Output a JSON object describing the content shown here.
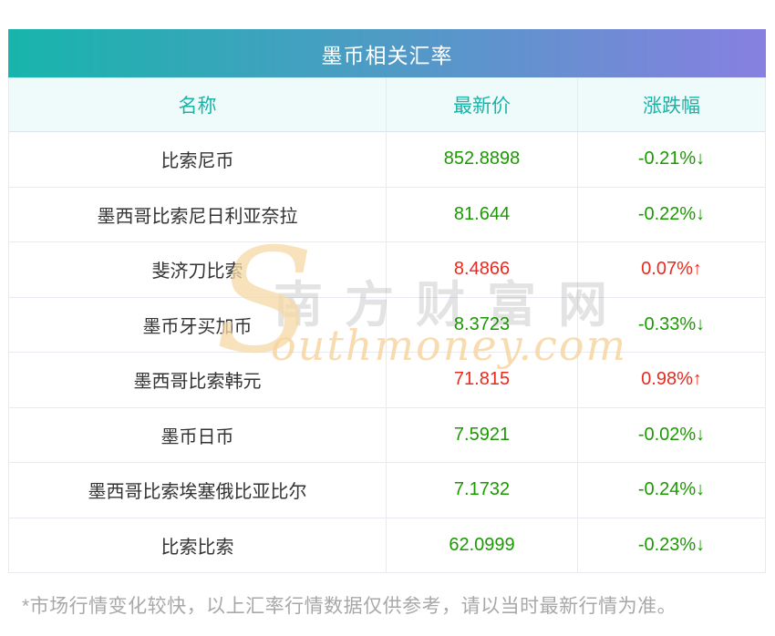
{
  "page": {
    "title": "墨币相关汇率",
    "footnote": "*市场行情变化较快，以上汇率行情数据仅供参考，请以当时最新行情为准。"
  },
  "colors": {
    "header_gradient_start": "#17b5ab",
    "header_gradient_end": "#8780e0",
    "header_text": "#ffffff",
    "column_header_bg": "#eefbfa",
    "column_header_text": "#1bb3a8",
    "up_color": "#ea2a1f",
    "down_color": "#1a9a00",
    "grid_line": "#e7ebf1",
    "footnote_text": "#a8a8a8"
  },
  "table": {
    "columns": [
      "名称",
      "最新价",
      "涨跌幅"
    ],
    "rows": [
      {
        "name": "比索尼币",
        "price": "852.8898",
        "change": "-0.21%↓",
        "trend": "down"
      },
      {
        "name": "墨西哥比索尼日利亚奈拉",
        "price": "81.644",
        "change": "-0.22%↓",
        "trend": "down"
      },
      {
        "name": "斐济刀比索",
        "price": "8.4866",
        "change": "0.07%↑",
        "trend": "up"
      },
      {
        "name": "墨币牙买加币",
        "price": "8.3723",
        "change": "-0.33%↓",
        "trend": "down"
      },
      {
        "name": "墨西哥比索韩元",
        "price": "71.815",
        "change": "0.98%↑",
        "trend": "up"
      },
      {
        "name": "墨币日币",
        "price": "7.5921",
        "change": "-0.02%↓",
        "trend": "down"
      },
      {
        "name": "墨西哥比索埃塞俄比亚比尔",
        "price": "7.1732",
        "change": "-0.24%↓",
        "trend": "down"
      },
      {
        "name": "比索比索",
        "price": "62.0999",
        "change": "-0.23%↓",
        "trend": "down"
      }
    ]
  },
  "watermark": {
    "site_name": "南方财富网",
    "initial": "S",
    "domain_rest": "outhmoney.com"
  },
  "chart_data": {
    "type": "table",
    "title": "墨币相关汇率",
    "columns": [
      "名称",
      "最新价",
      "涨跌幅"
    ],
    "rows": [
      [
        "比索尼币",
        852.8898,
        "-0.21%↓"
      ],
      [
        "墨西哥比索尼日利亚奈拉",
        81.644,
        "-0.22%↓"
      ],
      [
        "斐济刀比索",
        8.4866,
        "0.07%↑"
      ],
      [
        "墨币牙买加币",
        8.3723,
        "-0.33%↓"
      ],
      [
        "墨西哥比索韩元",
        71.815,
        "0.98%↑"
      ],
      [
        "墨币日币",
        7.5921,
        "-0.02%↓"
      ],
      [
        "墨西哥比索埃塞俄比亚比尔",
        7.1732,
        "-0.24%↓"
      ],
      [
        "比索比索",
        62.0999,
        "-0.23%↓"
      ]
    ]
  }
}
